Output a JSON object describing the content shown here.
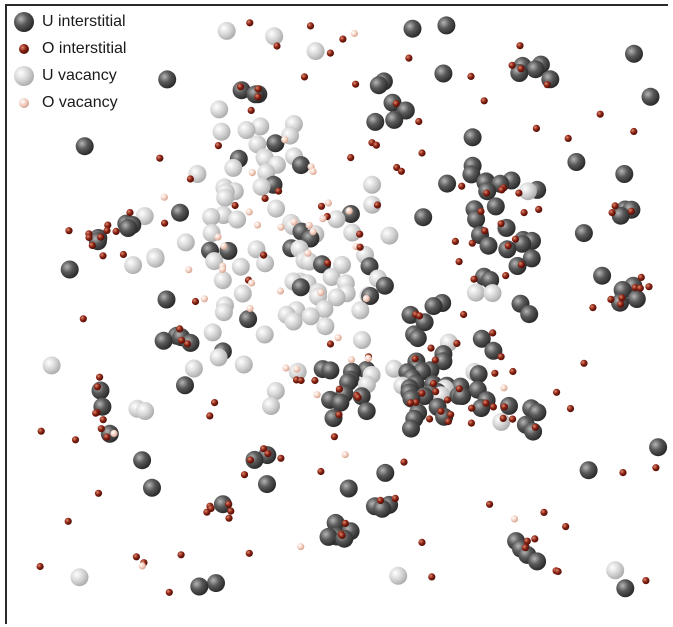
{
  "legend": {
    "items": [
      {
        "label": "U interstitial",
        "kind": "u-interstitial"
      },
      {
        "label": "O interstitial",
        "kind": "o-interstitial"
      },
      {
        "label": "U vacancy",
        "kind": "u-vacancy"
      },
      {
        "label": "O vacancy",
        "kind": "o-vacancy"
      }
    ]
  },
  "colors": {
    "u_interstitial": "#555555",
    "o_interstitial": "#8b2314",
    "u_vacancy": "#d0d0d0",
    "o_vacancy": "#f1c8b8"
  }
}
